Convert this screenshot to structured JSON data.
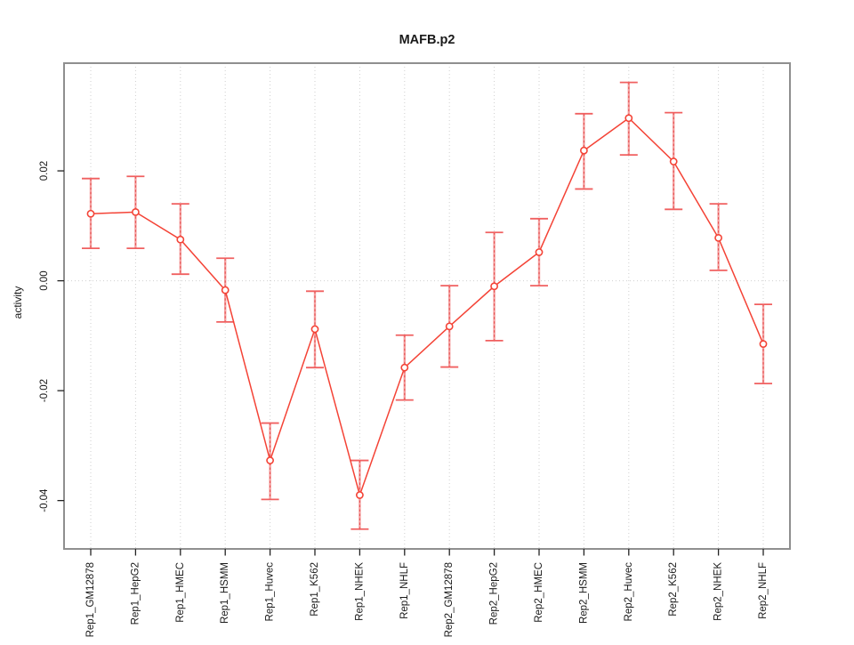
{
  "chart_data": {
    "type": "line",
    "title": "MAFB.p2",
    "xlabel": "",
    "ylabel": "activity",
    "categories": [
      "Rep1_GM12878",
      "Rep1_HepG2",
      "Rep1_HMEC",
      "Rep1_HSMM",
      "Rep1_Huvec",
      "Rep1_K562",
      "Rep1_NHEK",
      "Rep1_NHLF",
      "Rep2_GM12878",
      "Rep2_HepG2",
      "Rep2_HMEC",
      "Rep2_HSMM",
      "Rep2_Huvec",
      "Rep2_K562",
      "Rep2_NHEK",
      "Rep2_NHLF"
    ],
    "series": [
      {
        "name": "activity",
        "values": [
          0.0122,
          0.0125,
          0.0075,
          -0.0017,
          -0.0327,
          -0.0088,
          -0.039,
          -0.0158,
          -0.0083,
          -0.001,
          0.0052,
          0.0237,
          0.0296,
          0.0217,
          0.0078,
          -0.0115
        ],
        "error_high": [
          0.0186,
          0.019,
          0.014,
          0.0041,
          -0.0259,
          -0.0019,
          -0.0327,
          -0.0099,
          -0.0009,
          0.0088,
          0.0113,
          0.0304,
          0.0361,
          0.0306,
          0.014,
          -0.0043
        ],
        "error_low": [
          0.0059,
          0.0059,
          0.0012,
          -0.0075,
          -0.0398,
          -0.0158,
          -0.0452,
          -0.0217,
          -0.0157,
          -0.0109,
          -0.0009,
          0.0167,
          0.0229,
          0.013,
          0.0019,
          -0.0187
        ]
      }
    ],
    "yticks": [
      {
        "value": 0.02,
        "label": "0.02"
      },
      {
        "value": 0.0,
        "label": "0.00"
      },
      {
        "value": -0.02,
        "label": "-0.02"
      },
      {
        "value": -0.04,
        "label": "-0.04"
      }
    ],
    "ylim": [
      -0.0488,
      0.0396
    ],
    "grid": {
      "vertical_dotted_per_category": true,
      "horizontal_dotted_at_zero": true
    },
    "legend_position": "none",
    "colors": {
      "line": "#f44336",
      "point_stroke": "#f44336",
      "error_bar_fill": "#f5a0a0",
      "error_bar_dash": "#e34d4d",
      "error_cap": "#f06060",
      "grid": "#cfcfcf",
      "box": "#8f8f8f",
      "tick": "#222222"
    }
  }
}
